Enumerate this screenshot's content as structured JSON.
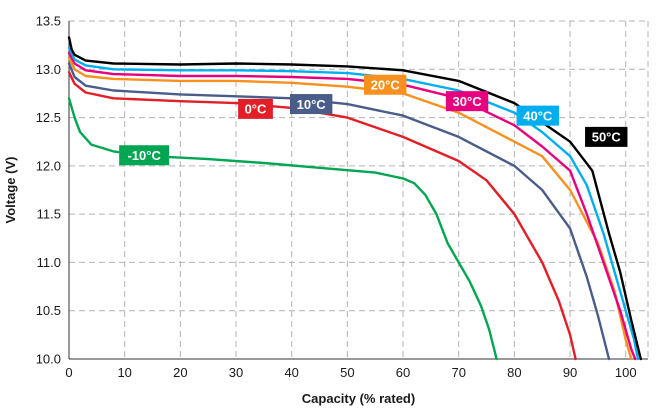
{
  "chart_data": {
    "type": "line",
    "title": "",
    "xlabel": "Capacity (% rated)",
    "ylabel": "Voltage (V)",
    "xlim": [
      0,
      104
    ],
    "ylim": [
      10.0,
      13.5
    ],
    "xticks": [
      0,
      10,
      20,
      30,
      40,
      50,
      60,
      70,
      80,
      90,
      100
    ],
    "yticks": [
      10.0,
      10.5,
      11.0,
      11.5,
      12.0,
      12.5,
      13.0,
      13.5
    ],
    "xtick_labels": [
      "0",
      "10",
      "20",
      "30",
      "40",
      "50",
      "60",
      "70",
      "80",
      "90",
      "100"
    ],
    "ytick_labels": [
      "10.0",
      "10.5",
      "11.0",
      "11.5",
      "12.0",
      "12.5",
      "13.0",
      "13.5"
    ],
    "grid": true,
    "legend": "labels-on-curves",
    "series": [
      {
        "name": "-10°C",
        "color": "#00a651",
        "label_at": [
          13.5,
          12.11
        ],
        "points": [
          [
            0,
            12.7
          ],
          [
            1,
            12.5
          ],
          [
            2,
            12.35
          ],
          [
            4,
            12.22
          ],
          [
            8,
            12.15
          ],
          [
            15,
            12.1
          ],
          [
            25,
            12.07
          ],
          [
            35,
            12.03
          ],
          [
            45,
            11.98
          ],
          [
            55,
            11.93
          ],
          [
            60,
            11.87
          ],
          [
            62,
            11.82
          ],
          [
            64,
            11.7
          ],
          [
            66,
            11.5
          ],
          [
            68,
            11.2
          ],
          [
            70,
            11.0
          ],
          [
            72,
            10.8
          ],
          [
            74,
            10.55
          ],
          [
            75.5,
            10.3
          ],
          [
            76.8,
            10.0
          ]
        ]
      },
      {
        "name": "0°C",
        "color": "#e21e26",
        "label_at": [
          33.5,
          12.59
        ],
        "points": [
          [
            0,
            12.97
          ],
          [
            1,
            12.85
          ],
          [
            3,
            12.76
          ],
          [
            8,
            12.7
          ],
          [
            20,
            12.67
          ],
          [
            30,
            12.65
          ],
          [
            40,
            12.6
          ],
          [
            50,
            12.5
          ],
          [
            60,
            12.3
          ],
          [
            70,
            12.05
          ],
          [
            75,
            11.85
          ],
          [
            80,
            11.5
          ],
          [
            85,
            11.0
          ],
          [
            88,
            10.6
          ],
          [
            90,
            10.25
          ],
          [
            91,
            10.0
          ]
        ]
      },
      {
        "name": "10°C",
        "color": "#4a5c8a",
        "label_at": [
          43.5,
          12.64
        ],
        "points": [
          [
            0,
            13.06
          ],
          [
            1,
            12.92
          ],
          [
            3,
            12.83
          ],
          [
            8,
            12.78
          ],
          [
            20,
            12.74
          ],
          [
            30,
            12.72
          ],
          [
            40,
            12.7
          ],
          [
            50,
            12.64
          ],
          [
            60,
            12.52
          ],
          [
            70,
            12.3
          ],
          [
            80,
            12.0
          ],
          [
            85,
            11.75
          ],
          [
            90,
            11.35
          ],
          [
            93,
            10.85
          ],
          [
            95,
            10.45
          ],
          [
            97,
            10.0
          ]
        ]
      },
      {
        "name": "20°C",
        "color": "#f7901e",
        "label_at": [
          56.8,
          12.84
        ],
        "points": [
          [
            0,
            13.12
          ],
          [
            1,
            13.0
          ],
          [
            3,
            12.93
          ],
          [
            8,
            12.9
          ],
          [
            20,
            12.88
          ],
          [
            30,
            12.88
          ],
          [
            40,
            12.86
          ],
          [
            50,
            12.82
          ],
          [
            60,
            12.75
          ],
          [
            70,
            12.55
          ],
          [
            80,
            12.25
          ],
          [
            85,
            12.1
          ],
          [
            90,
            11.75
          ],
          [
            95,
            11.2
          ],
          [
            98,
            10.7
          ],
          [
            100,
            10.2
          ],
          [
            101,
            10.0
          ]
        ]
      },
      {
        "name": "30°C",
        "color": "#e6007e",
        "label_at": [
          71.5,
          12.67
        ],
        "points": [
          [
            0,
            13.17
          ],
          [
            1,
            13.06
          ],
          [
            3,
            12.99
          ],
          [
            8,
            12.95
          ],
          [
            20,
            12.93
          ],
          [
            30,
            12.93
          ],
          [
            40,
            12.92
          ],
          [
            50,
            12.9
          ],
          [
            60,
            12.84
          ],
          [
            70,
            12.7
          ],
          [
            80,
            12.42
          ],
          [
            85,
            12.2
          ],
          [
            90,
            11.95
          ],
          [
            93,
            11.5
          ],
          [
            96,
            11.0
          ],
          [
            99,
            10.5
          ],
          [
            101,
            10.1
          ],
          [
            101.7,
            10.0
          ]
        ]
      },
      {
        "name": "40°C",
        "color": "#00aeef",
        "label_at": [
          84.2,
          12.52
        ],
        "points": [
          [
            0,
            13.22
          ],
          [
            1,
            13.1
          ],
          [
            3,
            13.04
          ],
          [
            8,
            13.0
          ],
          [
            20,
            12.99
          ],
          [
            30,
            12.99
          ],
          [
            40,
            12.98
          ],
          [
            50,
            12.96
          ],
          [
            60,
            12.9
          ],
          [
            70,
            12.78
          ],
          [
            80,
            12.55
          ],
          [
            85,
            12.35
          ],
          [
            90,
            12.1
          ],
          [
            93,
            11.8
          ],
          [
            96,
            11.3
          ],
          [
            99,
            10.7
          ],
          [
            101.5,
            10.2
          ],
          [
            102.2,
            10.0
          ]
        ]
      },
      {
        "name": "50°C",
        "color": "#000000",
        "label_at": [
          96.5,
          12.3
        ],
        "points": [
          [
            0,
            13.33
          ],
          [
            0.5,
            13.2
          ],
          [
            1,
            13.15
          ],
          [
            3,
            13.09
          ],
          [
            8,
            13.06
          ],
          [
            20,
            13.05
          ],
          [
            30,
            13.06
          ],
          [
            40,
            13.05
          ],
          [
            50,
            13.03
          ],
          [
            60,
            12.99
          ],
          [
            70,
            12.88
          ],
          [
            80,
            12.65
          ],
          [
            85,
            12.45
          ],
          [
            90,
            12.25
          ],
          [
            94,
            11.95
          ],
          [
            97,
            11.3
          ],
          [
            99,
            10.9
          ],
          [
            101,
            10.4
          ],
          [
            102.7,
            10.0
          ]
        ]
      }
    ]
  }
}
